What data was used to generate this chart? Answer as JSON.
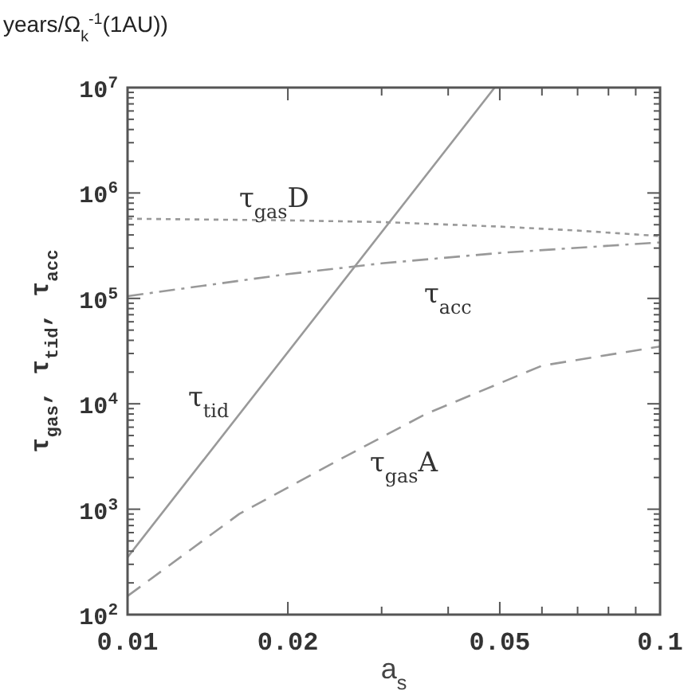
{
  "chart_data": {
    "type": "line",
    "xlabel": "a$_{s}$",
    "ylabel": "τ$_{gas}$, τ$_{tid}$, τ$_{acc}$",
    "log": "xy",
    "grid": false,
    "xlim": [
      0.01,
      0.1
    ],
    "ylim": [
      100,
      10000000
    ],
    "xticks": [
      {
        "value": 0.01,
        "label": "0.01"
      },
      {
        "value": 0.02,
        "label": "0.02"
      },
      {
        "value": 0.03,
        "label": null
      },
      {
        "value": 0.04,
        "label": null
      },
      {
        "value": 0.05,
        "label": "0.05"
      },
      {
        "value": 0.06,
        "label": null
      },
      {
        "value": 0.07,
        "label": null
      },
      {
        "value": 0.08,
        "label": null
      },
      {
        "value": 0.09,
        "label": null
      },
      {
        "value": 0.1,
        "label": "0.1"
      }
    ],
    "yticks": [
      {
        "value": 100,
        "label": "10$^{2}$"
      },
      {
        "value": 200,
        "label": null
      },
      {
        "value": 300,
        "label": null
      },
      {
        "value": 400,
        "label": null
      },
      {
        "value": 500,
        "label": null
      },
      {
        "value": 600,
        "label": null
      },
      {
        "value": 700,
        "label": null
      },
      {
        "value": 800,
        "label": null
      },
      {
        "value": 900,
        "label": null
      },
      {
        "value": 1000,
        "label": "10$^{3}$"
      },
      {
        "value": 2000,
        "label": null
      },
      {
        "value": 3000,
        "label": null
      },
      {
        "value": 4000,
        "label": null
      },
      {
        "value": 5000,
        "label": null
      },
      {
        "value": 6000,
        "label": null
      },
      {
        "value": 7000,
        "label": null
      },
      {
        "value": 8000,
        "label": null
      },
      {
        "value": 9000,
        "label": null
      },
      {
        "value": 10000,
        "label": "10$^{4}$"
      },
      {
        "value": 20000,
        "label": null
      },
      {
        "value": 30000,
        "label": null
      },
      {
        "value": 40000,
        "label": null
      },
      {
        "value": 50000,
        "label": null
      },
      {
        "value": 60000,
        "label": null
      },
      {
        "value": 70000,
        "label": null
      },
      {
        "value": 80000,
        "label": null
      },
      {
        "value": 90000,
        "label": null
      },
      {
        "value": 100000,
        "label": "10$^{5}$"
      },
      {
        "value": 200000,
        "label": null
      },
      {
        "value": 300000,
        "label": null
      },
      {
        "value": 400000,
        "label": null
      },
      {
        "value": 500000,
        "label": null
      },
      {
        "value": 600000,
        "label": null
      },
      {
        "value": 700000,
        "label": null
      },
      {
        "value": 800000,
        "label": null
      },
      {
        "value": 900000,
        "label": null
      },
      {
        "value": 1000000,
        "label": "10$^{6}$"
      },
      {
        "value": 2000000,
        "label": null
      },
      {
        "value": 3000000,
        "label": null
      },
      {
        "value": 4000000,
        "label": null
      },
      {
        "value": 5000000,
        "label": null
      },
      {
        "value": 6000000,
        "label": null
      },
      {
        "value": 7000000,
        "label": null
      },
      {
        "value": 8000000,
        "label": null
      },
      {
        "value": 9000000,
        "label": null
      },
      {
        "value": 10000000,
        "label": "10$^{7}$"
      }
    ],
    "series": [
      {
        "color": "#999999",
        "line_style": "solid",
        "x": [
          0.01,
          0.0489
        ],
        "values": [
          350,
          10000000
        ]
      },
      {
        "color": "#999999",
        "line_style": "dotted",
        "x": [
          0.01,
          0.02,
          0.03,
          0.05,
          0.07,
          0.1
        ],
        "values": [
          570000,
          550000,
          530000,
          480000,
          440000,
          390000
        ]
      },
      {
        "color": "#999999",
        "line_style": "dashdot",
        "x": [
          0.01,
          0.02,
          0.03,
          0.05,
          0.1
        ],
        "values": [
          105000,
          170000,
          215000,
          270000,
          340000
        ]
      },
      {
        "color": "#999999",
        "line_style": "dashed",
        "x": [
          0.01,
          0.0162,
          0.0245,
          0.0363,
          0.06,
          0.1
        ],
        "values": [
          150,
          900,
          2800,
          8000,
          23000,
          35000
        ]
      }
    ],
    "annotations": [
      "years/Ω$_{k}$$^{-1}$(1AU))",
      "τ$_{gas}$D",
      "τ$_{acc}$",
      "τ$_{tid}$",
      "τ$_{gas}$A"
    ]
  }
}
